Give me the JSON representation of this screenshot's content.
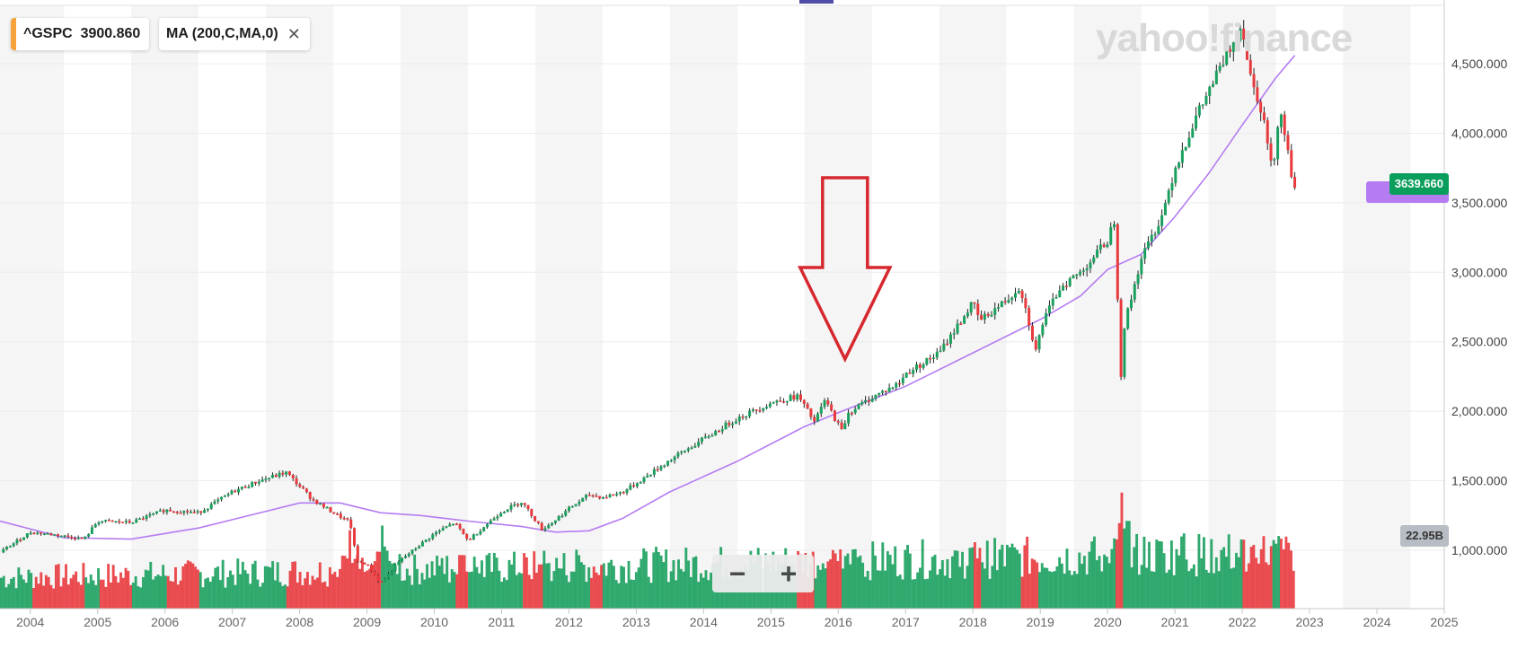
{
  "legend": {
    "symbol": "^GSPC",
    "symbol_value": "3900.860",
    "symbol_color": "#f7a23b",
    "indicator": "MA (200,C,MA,0)",
    "close_icon": "close-icon"
  },
  "watermark": "yahoo!finance",
  "price_tags": {
    "last_price": "3639.660",
    "last_price_color": "#0a9e5c",
    "ma_color": "#b57cf2",
    "volume": "22.95B",
    "volume_color": "#b8bcc4"
  },
  "zoom": {
    "minus": "−",
    "plus": "+"
  },
  "colors": {
    "up": "#1aa05e",
    "down": "#e8393d",
    "ma": "#b57cf2",
    "band": "#f5f5f5",
    "grid": "#ececec"
  },
  "chart_data": {
    "type": "candlestick",
    "title": "",
    "xlabel": "",
    "ylabel": "",
    "x_tick_labels": [
      "2004",
      "2005",
      "2006",
      "2007",
      "2008",
      "2009",
      "2010",
      "2011",
      "2012",
      "2013",
      "2014",
      "2015",
      "2016",
      "2017",
      "2018",
      "2019",
      "2020",
      "2021",
      "2022",
      "2023",
      "2024",
      "2025"
    ],
    "y_tick_labels": [
      "1,000.000",
      "1,500.000",
      "2,000.000",
      "2,500.000",
      "3,000.000",
      "3,500.000",
      "4,000.000",
      "4,500.000"
    ],
    "y_ticks": [
      1000,
      1500,
      2000,
      2500,
      3000,
      3500,
      4000,
      4500
    ],
    "ylim": [
      580,
      4920
    ],
    "xlim": [
      2003.55,
      2025.0
    ],
    "price_series": {
      "name": "^GSPC",
      "x": [
        2003.55,
        2004.0,
        2004.4,
        2004.8,
        2005.0,
        2005.5,
        2006.0,
        2006.5,
        2007.0,
        2007.4,
        2007.8,
        2008.2,
        2008.5,
        2008.75,
        2008.85,
        2009.0,
        2009.2,
        2009.5,
        2010.0,
        2010.3,
        2010.5,
        2011.0,
        2011.3,
        2011.6,
        2011.75,
        2012.0,
        2012.3,
        2012.5,
        2012.8,
        2013.0,
        2013.5,
        2014.0,
        2014.5,
        2015.0,
        2015.4,
        2015.65,
        2015.8,
        2016.05,
        2016.15,
        2016.5,
        2016.9,
        2017.0,
        2017.5,
        2018.0,
        2018.1,
        2018.5,
        2018.7,
        2018.95,
        2019.0,
        2019.3,
        2019.6,
        2020.0,
        2020.1,
        2020.2,
        2020.25,
        2020.5,
        2020.8,
        2021.0,
        2021.3,
        2021.6,
        2022.0,
        2022.1,
        2022.3,
        2022.45,
        2022.55,
        2022.65,
        2022.75,
        2022.78
      ],
      "y": [
        985,
        1130,
        1110,
        1080,
        1210,
        1200,
        1290,
        1270,
        1420,
        1500,
        1560,
        1360,
        1270,
        1200,
        920,
        900,
        760,
        930,
        1120,
        1200,
        1070,
        1280,
        1350,
        1150,
        1200,
        1300,
        1400,
        1380,
        1420,
        1480,
        1650,
        1800,
        1950,
        2060,
        2110,
        1920,
        2080,
        1860,
        1990,
        2100,
        2200,
        2270,
        2420,
        2780,
        2650,
        2800,
        2900,
        2400,
        2600,
        2900,
        3000,
        3230,
        3380,
        2250,
        2620,
        3100,
        3400,
        3750,
        4100,
        4400,
        4790,
        4450,
        4150,
        3700,
        4200,
        3950,
        3650,
        3639.66
      ]
    },
    "ma_series": {
      "name": "MA (200,C,MA,0)",
      "x": [
        2003.55,
        2004.5,
        2005.5,
        2006.5,
        2007.5,
        2008.0,
        2008.6,
        2009.2,
        2009.8,
        2010.5,
        2011.3,
        2011.8,
        2012.3,
        2012.8,
        2013.5,
        2014.5,
        2015.5,
        2016.0,
        2017.0,
        2018.0,
        2019.0,
        2019.6,
        2020.0,
        2020.5,
        2021.0,
        2021.5,
        2022.0,
        2022.5,
        2022.78
      ],
      "y": [
        1210,
        1090,
        1080,
        1160,
        1280,
        1340,
        1340,
        1270,
        1250,
        1210,
        1170,
        1130,
        1140,
        1230,
        1420,
        1640,
        1890,
        1990,
        2180,
        2420,
        2660,
        2830,
        3020,
        3130,
        3400,
        3710,
        4060,
        4400,
        4560
      ]
    },
    "volume": {
      "name": "Volume",
      "x_start": 2003.55,
      "x_end": 2022.78,
      "unit": "B",
      "last": 22.95,
      "spikes": [
        [
          2008.75,
          1.0
        ],
        [
          2009.2,
          0.95
        ],
        [
          2010.4,
          0.75
        ],
        [
          2011.6,
          0.7
        ],
        [
          2016.05,
          0.55
        ],
        [
          2018.1,
          0.6
        ],
        [
          2020.2,
          1.0
        ],
        [
          2021.1,
          0.7
        ],
        [
          2022.3,
          0.65
        ]
      ]
    },
    "annotation": {
      "type": "arrow",
      "direction": "down",
      "x": 2016.1,
      "color": "#d6282e"
    }
  }
}
